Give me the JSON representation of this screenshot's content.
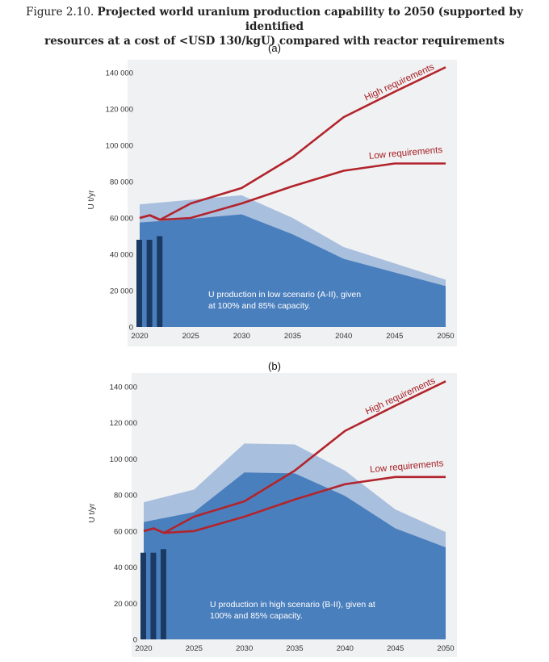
{
  "figure": {
    "prefix": "Figure 2.10.",
    "title_line1": "Projected world uranium production capability to 2050 (supported by identified",
    "title_line2": "resources at a cost of <USD 130/kgU) compared with reactor requirements"
  },
  "colors": {
    "cap100": "#a9bfde",
    "cap85": "#4a7fbd",
    "bars": "#1a3a64",
    "requirements": "#b2242c",
    "background": "#f0f1f2"
  },
  "chart_data": [
    {
      "type": "area",
      "panel_label": "(a)",
      "ylabel": "U t/yr",
      "ylim": [
        0,
        140000
      ],
      "xlim": [
        2020,
        2050
      ],
      "x_ticks": [
        "2020",
        "2025",
        "2030",
        "2035",
        "2040",
        "2045",
        "2050"
      ],
      "y_ticks": [
        "0",
        "20 000",
        "40 000",
        "60 000",
        "80 000",
        "100 000",
        "120 000",
        "140 000"
      ],
      "capacity_100": {
        "x": [
          2020,
          2025,
          2030,
          2035,
          2040,
          2045,
          2050
        ],
        "y": [
          67500,
          70000,
          72500,
          60000,
          44000,
          35000,
          26000
        ]
      },
      "capacity_85": {
        "x": [
          2020,
          2025,
          2030,
          2035,
          2040,
          2045,
          2050
        ],
        "y": [
          57500,
          59500,
          62000,
          51000,
          37500,
          30000,
          22500
        ]
      },
      "production_bars": {
        "x": [
          2020,
          2021,
          2022
        ],
        "values": [
          48000,
          48000,
          50000
        ]
      },
      "series": [
        {
          "name": "High requirements",
          "x": [
            2020,
            2021,
            2022,
            2025,
            2030,
            2035,
            2040,
            2045,
            2050
          ],
          "y": [
            60000,
            61500,
            59000,
            68000,
            76500,
            93500,
            115500,
            129500,
            143000
          ]
        },
        {
          "name": "Low requirements",
          "x": [
            2020,
            2021,
            2022,
            2025,
            2030,
            2035,
            2040,
            2045,
            2050
          ],
          "y": [
            60000,
            61500,
            59000,
            60000,
            68000,
            77500,
            86000,
            90000,
            90000
          ]
        }
      ],
      "annotation": {
        "line1": "U production in low scenario (A-II), given",
        "line2": "at 100% and 85% capacity."
      }
    },
    {
      "type": "area",
      "panel_label": "(b)",
      "ylabel": "U t/yr",
      "ylim": [
        0,
        140000
      ],
      "xlim": [
        2020,
        2050
      ],
      "x_ticks": [
        "2020",
        "2025",
        "2030",
        "2035",
        "2040",
        "2045",
        "2050"
      ],
      "y_ticks": [
        "0",
        "20 000",
        "40 000",
        "60 000",
        "80 000",
        "100 000",
        "120 000",
        "140 000"
      ],
      "capacity_100": {
        "x": [
          2020,
          2025,
          2030,
          2035,
          2040,
          2045,
          2050
        ],
        "y": [
          76000,
          83000,
          108500,
          108000,
          93500,
          72000,
          59500
        ]
      },
      "capacity_85": {
        "x": [
          2020,
          2025,
          2030,
          2035,
          2040,
          2045,
          2050
        ],
        "y": [
          65000,
          70500,
          92500,
          92000,
          79500,
          61500,
          51000
        ]
      },
      "production_bars": {
        "x": [
          2020,
          2021,
          2022
        ],
        "values": [
          48000,
          48000,
          50000
        ]
      },
      "series": [
        {
          "name": "High requirements",
          "x": [
            2020,
            2021,
            2022,
            2025,
            2030,
            2035,
            2040,
            2045,
            2050
          ],
          "y": [
            60000,
            61500,
            59000,
            68000,
            76500,
            93500,
            115500,
            129500,
            143000
          ]
        },
        {
          "name": "Low requirements",
          "x": [
            2020,
            2021,
            2022,
            2025,
            2030,
            2035,
            2040,
            2045,
            2050
          ],
          "y": [
            60000,
            61500,
            59000,
            60000,
            68000,
            77500,
            86000,
            90000,
            90000
          ]
        }
      ],
      "annotation": {
        "line1": "U production in high scenario (B-II), given at",
        "line2": "100% and 85% capacity."
      }
    }
  ]
}
